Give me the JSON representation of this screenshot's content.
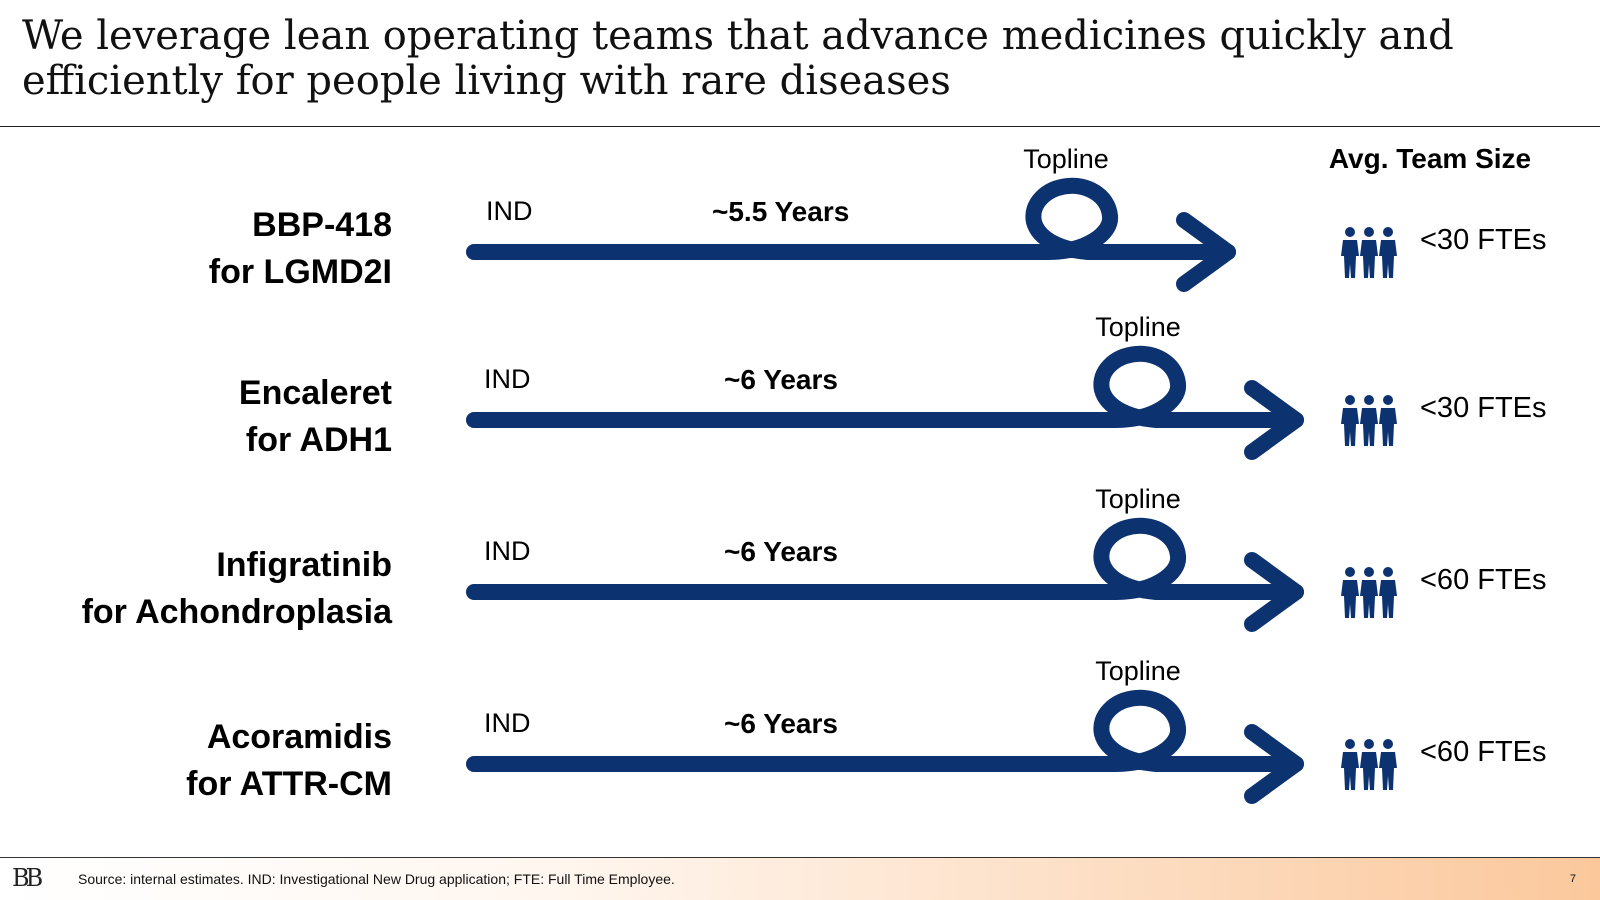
{
  "header": {
    "title_line1": "We leverage lean operating teams that advance medicines quickly and",
    "title_line2": "efficiently for people living with rare diseases",
    "team_size_header": "Avg. Team Size"
  },
  "icons": {
    "team": "people-group-icon",
    "loop": "loop-arrow-icon"
  },
  "colors": {
    "arrow": "#0c3270"
  },
  "rows": [
    {
      "drug_line1": "BBP-418",
      "drug_line2": "for LGMD2I",
      "start_label": "IND",
      "duration": "~5.5 Years",
      "milestone": "Topline",
      "team_size": "<30 FTEs"
    },
    {
      "drug_line1": "Encaleret",
      "drug_line2": "for ADH1",
      "start_label": "IND",
      "duration": "~6 Years",
      "milestone": "Topline",
      "team_size": "<30 FTEs"
    },
    {
      "drug_line1": "Infigratinib",
      "drug_line2": "for Achondroplasia",
      "start_label": "IND",
      "duration": "~6 Years",
      "milestone": "Topline",
      "team_size": "<60 FTEs"
    },
    {
      "drug_line1": "Acoramidis",
      "drug_line2": "for ATTR-CM",
      "start_label": "IND",
      "duration": "~6 Years",
      "milestone": "Topline",
      "team_size": "<60 FTEs"
    }
  ],
  "footer": {
    "logo": "BB",
    "source": "Source: internal estimates. IND: Investigational New Drug application; FTE: Full Time Employee.",
    "page_number": "7"
  }
}
